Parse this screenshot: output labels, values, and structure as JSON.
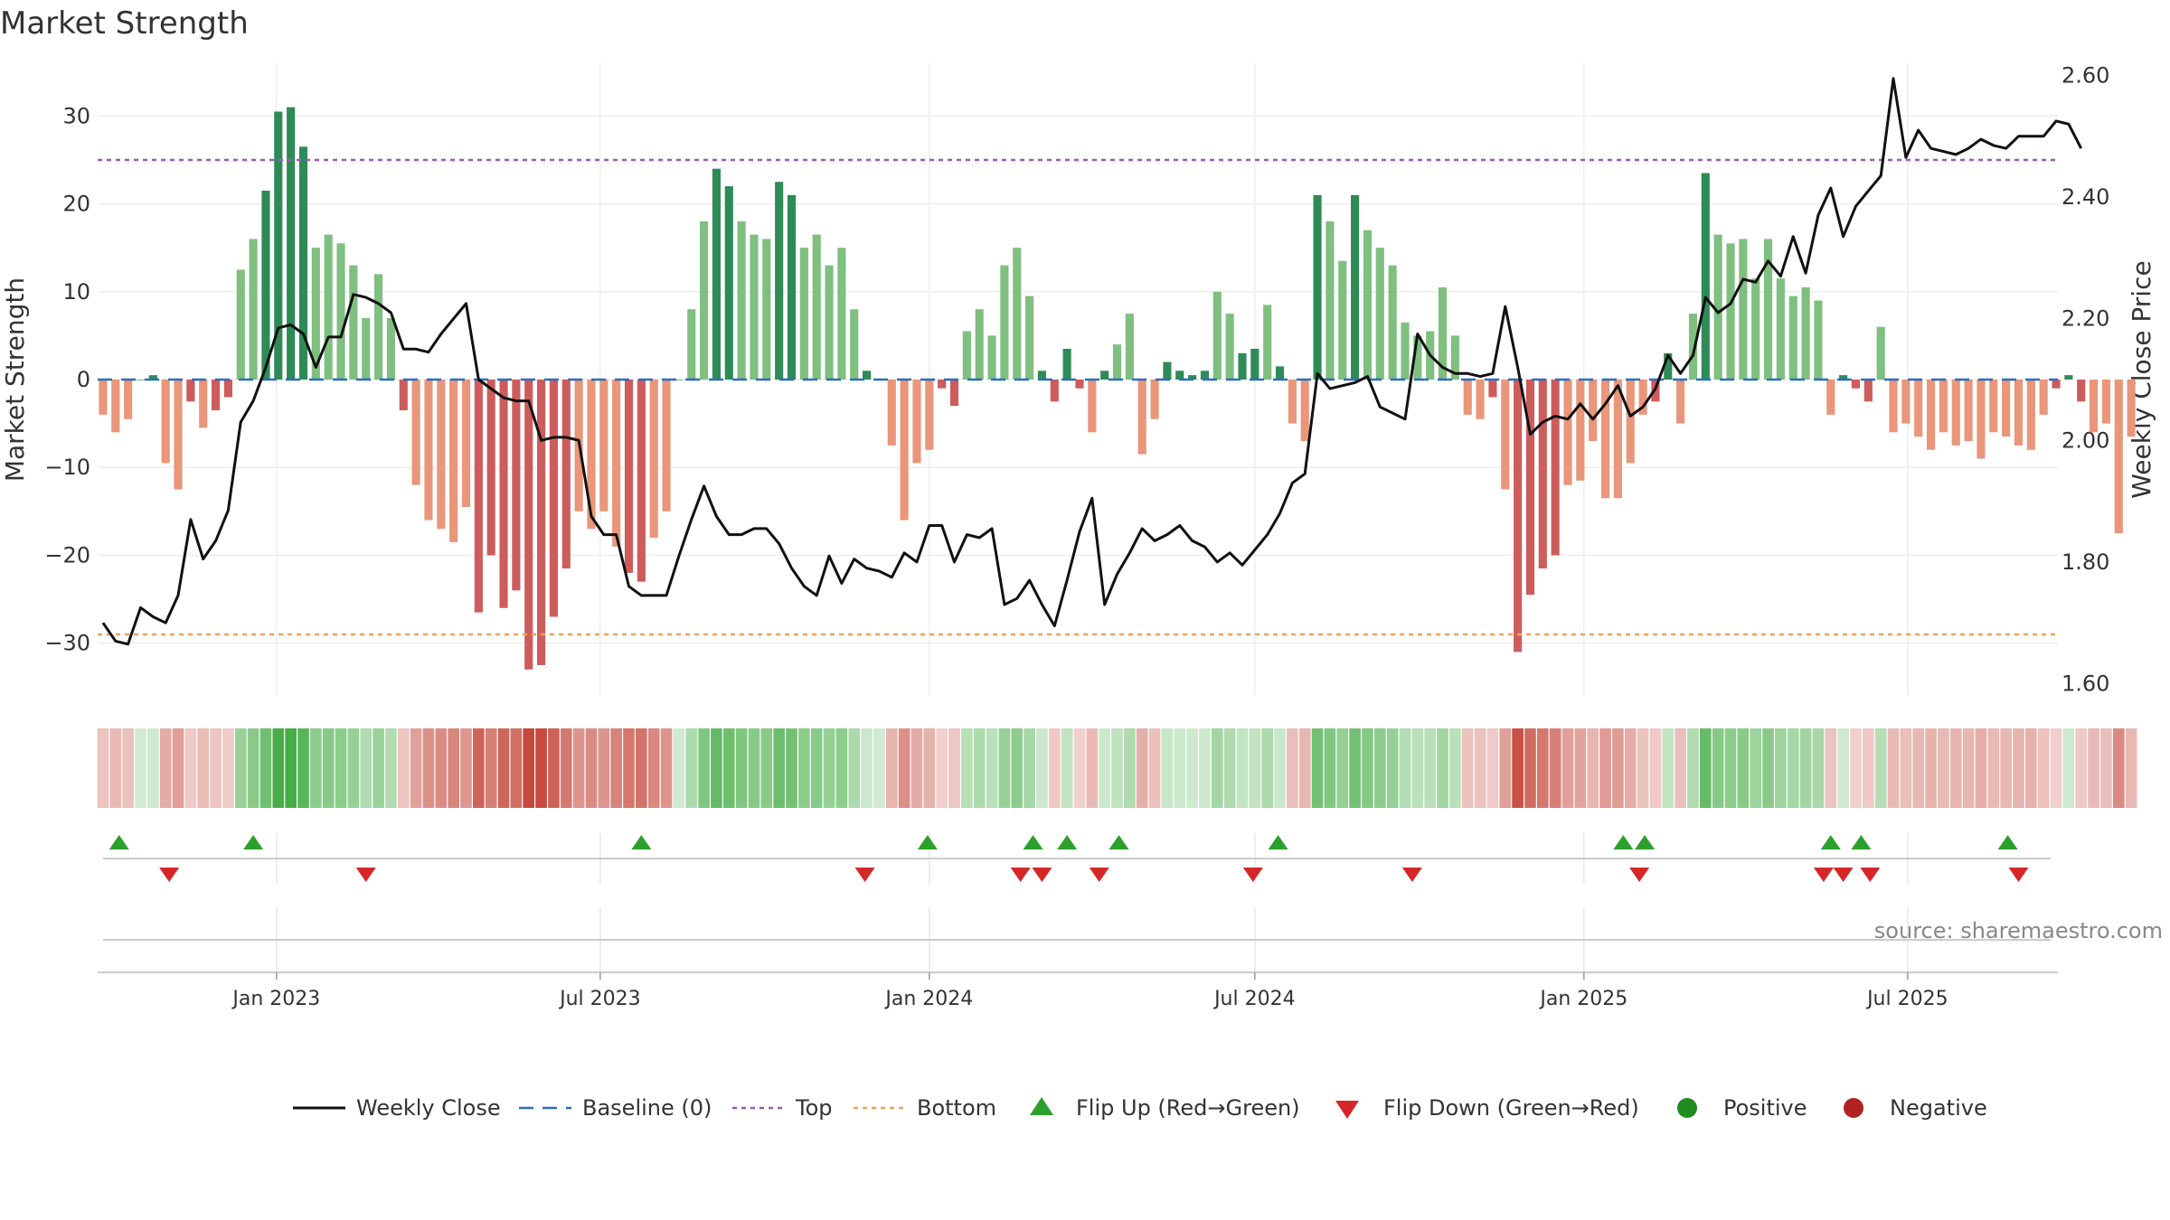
{
  "chart_data": {
    "type": "bar",
    "title": "Market Strength",
    "ylabel_left": "Market Strength",
    "ylabel_right": "Weekly Close Price",
    "ylim_left": [
      -36,
      36
    ],
    "ylim_right": [
      1.58,
      2.62
    ],
    "yticks_left": [
      30,
      20,
      10,
      0,
      -10,
      -20,
      -30
    ],
    "yticks_left_labels": [
      "30",
      "20",
      "10",
      "0",
      "−10",
      "−20",
      "−30"
    ],
    "yticks_right": [
      2.6,
      2.4,
      2.2,
      2.0,
      1.8,
      1.6
    ],
    "yticks_right_labels": [
      "2.60",
      "2.40",
      "2.20",
      "2.00",
      "1.80",
      "1.60"
    ],
    "x_start": "2022-09-23",
    "x_end": "2025-09-23",
    "xticks": [
      {
        "date": "2023-01-01",
        "label": "Jan 2023"
      },
      {
        "date": "2023-07-01",
        "label": "Jul 2023"
      },
      {
        "date": "2024-01-01",
        "label": "Jan 2024"
      },
      {
        "date": "2024-07-01",
        "label": "Jul 2024"
      },
      {
        "date": "2025-01-01",
        "label": "Jan 2025"
      },
      {
        "date": "2025-07-01",
        "label": "Jul 2025"
      }
    ],
    "week_start": "2022-09-26",
    "week_step_days": 7,
    "strength": [
      -4,
      -6,
      -4.5,
      0,
      0.5,
      -9.5,
      -12.5,
      -2.5,
      -5.5,
      -3.5,
      -2,
      12.5,
      16,
      21.5,
      30.5,
      31,
      26.5,
      15,
      16.5,
      15.5,
      13,
      7,
      12,
      7,
      -3.5,
      -12,
      -16,
      -17,
      -18.5,
      -14.5,
      -26.5,
      -20,
      -26,
      -24,
      -33,
      -32.5,
      -27,
      -21.5,
      -15,
      -17,
      -15,
      -19,
      -22,
      -23,
      -18,
      -15,
      0,
      8,
      18,
      24,
      22,
      18,
      16.5,
      16,
      22.5,
      21,
      15,
      16.5,
      13,
      15,
      8,
      1,
      0,
      -7.5,
      -16,
      -9.5,
      -8,
      -1,
      -3,
      5.5,
      8,
      5,
      13,
      15,
      9.5,
      1,
      -2.5,
      3.5,
      -1,
      -6,
      1,
      4,
      7.5,
      -8.5,
      -4.5,
      2,
      1,
      0.5,
      1,
      10,
      7.5,
      3,
      3.5,
      8.5,
      1.5,
      -5,
      -7,
      21,
      18,
      13.5,
      21,
      17,
      15,
      13,
      6.5,
      5,
      5.5,
      10.5,
      5,
      -4,
      -4.5,
      -2,
      -12.5,
      -31,
      -24.5,
      -21.5,
      -20,
      -12,
      -11.5,
      -7,
      -13.5,
      -13.5,
      -9.5,
      -4,
      -2.5,
      3,
      -5,
      7.5,
      23.5,
      16.5,
      15.5,
      16,
      11.5,
      16,
      11.5,
      9.5,
      10.5,
      9,
      -4,
      0.5,
      -1,
      -2.5,
      6,
      -6,
      -5,
      -6.5,
      -8,
      -6,
      -7.5,
      -7,
      -9,
      -6,
      -6.5,
      -7.5,
      -8,
      -4,
      -1,
      0.5,
      -2.5,
      -6,
      -5,
      -17.5,
      -6.5
    ],
    "close": [
      1.7,
      1.67,
      1.665,
      1.725,
      1.71,
      1.7,
      1.745,
      1.87,
      1.805,
      1.835,
      1.885,
      2.03,
      2.065,
      2.12,
      2.185,
      2.19,
      2.175,
      2.12,
      2.17,
      2.17,
      2.24,
      2.235,
      2.225,
      2.21,
      2.15,
      2.15,
      2.145,
      2.175,
      2.2,
      2.225,
      2.1,
      2.085,
      2.07,
      2.065,
      2.065,
      2.0,
      2.005,
      2.005,
      2.0,
      1.875,
      1.845,
      1.845,
      1.76,
      1.745,
      1.745,
      1.745,
      1.81,
      1.87,
      1.925,
      1.875,
      1.845,
      1.845,
      1.855,
      1.855,
      1.83,
      1.79,
      1.76,
      1.745,
      1.81,
      1.765,
      1.805,
      1.79,
      1.785,
      1.775,
      1.815,
      1.8,
      1.86,
      1.86,
      1.8,
      1.845,
      1.84,
      1.855,
      1.73,
      1.74,
      1.77,
      1.73,
      1.695,
      1.77,
      1.85,
      1.905,
      1.73,
      1.78,
      1.815,
      1.855,
      1.835,
      1.845,
      1.86,
      1.835,
      1.825,
      1.8,
      1.815,
      1.795,
      1.82,
      1.845,
      1.88,
      1.93,
      1.945,
      2.11,
      2.085,
      2.09,
      2.095,
      2.105,
      2.055,
      2.045,
      2.035,
      2.175,
      2.14,
      2.12,
      2.11,
      2.11,
      2.105,
      2.11,
      2.22,
      2.12,
      2.01,
      2.03,
      2.04,
      2.035,
      2.06,
      2.035,
      2.06,
      2.09,
      2.04,
      2.055,
      2.085,
      2.14,
      2.11,
      2.14,
      2.235,
      2.21,
      2.225,
      2.265,
      2.26,
      2.295,
      2.27,
      2.335,
      2.275,
      2.37,
      2.415,
      2.335,
      2.385,
      2.41,
      2.435,
      2.595,
      2.465,
      2.51,
      2.48,
      2.475,
      2.47,
      2.48,
      2.495,
      2.485,
      2.48,
      2.5,
      2.5,
      2.5,
      2.525,
      2.52,
      2.48
    ],
    "reference_lines": {
      "baseline": 0,
      "top": 25,
      "bottom": -29
    },
    "flip_up_dates": [
      "2022-10-05",
      "2022-12-19",
      "2023-07-24",
      "2023-12-31",
      "2024-02-28",
      "2024-03-18",
      "2024-04-16",
      "2024-07-14",
      "2025-01-23",
      "2025-02-04",
      "2025-05-19",
      "2025-06-05",
      "2025-08-26"
    ],
    "flip_down_dates": [
      "2022-11-02",
      "2023-02-20",
      "2023-11-26",
      "2024-02-21",
      "2024-03-04",
      "2024-04-05",
      "2024-06-30",
      "2024-09-27",
      "2025-02-01",
      "2025-05-15",
      "2025-05-26",
      "2025-06-10",
      "2025-09-01"
    ],
    "legend_placement": "bottom",
    "grid": true
  },
  "legend": {
    "weekly_close": "Weekly Close",
    "baseline": "Baseline (0)",
    "top": "Top",
    "bottom": "Bottom",
    "flip_up": "Flip Up (Red→Green)",
    "flip_down": "Flip Down (Green→Red)",
    "positive": "Positive",
    "negative": "Negative"
  },
  "source_text": "source: sharemaestro.com",
  "colors": {
    "bar_green_strong": "#2e8b57",
    "bar_green_light": "#7fbf7f",
    "bar_red_strong": "#cd5c5c",
    "bar_red_light": "#e9967a",
    "close_line": "#111111",
    "top_line": "#9b59b6",
    "bottom_line": "#f0a15a",
    "baseline": "#2a6fbf",
    "flip_up": "#2ca02c",
    "flip_down": "#d62728",
    "positive": "#228b22",
    "negative": "#b22222"
  }
}
